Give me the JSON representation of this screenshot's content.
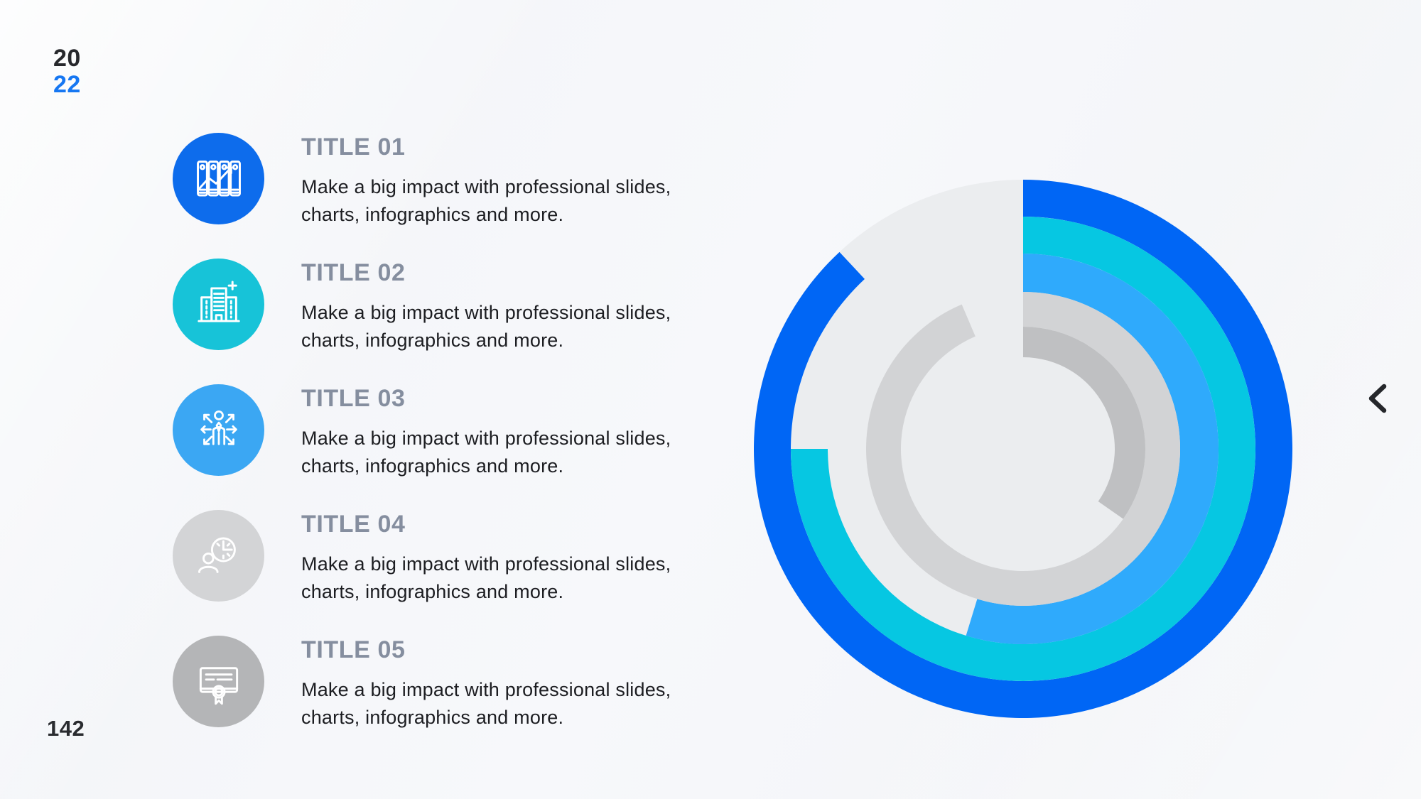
{
  "slide": {
    "year_line1": "20",
    "year_line2": "22",
    "page_number": "142"
  },
  "items": [
    {
      "title": "TITLE 01",
      "description": "Make a big impact with professional slides, charts, infographics and more.",
      "icon": "archive-binders-growth-icon",
      "color": "#0d6cec"
    },
    {
      "title": "TITLE 02",
      "description": "Make a big impact with professional slides, charts, infographics and more.",
      "icon": "office-building-icon",
      "color": "#17c3d8"
    },
    {
      "title": "TITLE 03",
      "description": "Make a big impact with professional slides, charts, infographics and more.",
      "icon": "person-directions-icon",
      "color": "#3ba7f3"
    },
    {
      "title": "TITLE 04",
      "description": "Make a big impact with professional slides, charts, infographics and more.",
      "icon": "person-clock-icon",
      "color": "#d3d4d6"
    },
    {
      "title": "TITLE 05",
      "description": "Make a big impact with professional slides, charts, infographics and more.",
      "icon": "certificate-icon",
      "color": "#b4b5b7"
    }
  ],
  "chart_data": {
    "type": "radial_rings",
    "title": "",
    "description": "Five concentric progress rings, each starting at 12 o'clock and sweeping clockwise; ring colors match the five list items; unfilled area shows a light gray disc",
    "background_disc_color": "#ebedef",
    "rings": [
      {
        "label": "TITLE 01",
        "color": "#0066f5",
        "percent": 88,
        "sweep_deg": 317,
        "outer_r": 379,
        "inner_r": 327
      },
      {
        "label": "TITLE 02",
        "color": "#06c7e2",
        "percent": 75,
        "sweep_deg": 270,
        "outer_r": 327,
        "inner_r": 275
      },
      {
        "label": "TITLE 03",
        "color": "#2faafc",
        "percent": 55,
        "sweep_deg": 197,
        "outer_r": 275,
        "inner_r": 221
      },
      {
        "label": "TITLE 04",
        "color": "#d2d3d5",
        "percent": 94,
        "sweep_deg": 337,
        "outer_r": 221,
        "inner_r": 172
      },
      {
        "label": "TITLE 05",
        "color": "#bfc0c2",
        "percent": 35,
        "sweep_deg": 125,
        "outer_r": 172,
        "inner_r": 129
      }
    ]
  },
  "nav": {
    "back_icon": "chevron-left-icon"
  },
  "colors": {
    "accent_blue": "#0066f5",
    "accent_cyan": "#06c7e2",
    "accent_light_blue": "#2faafc",
    "year_accent": "#1677f2",
    "title_gray": "#858e9f",
    "text_dark": "#1c1d21",
    "background": "#f4f6f9"
  }
}
